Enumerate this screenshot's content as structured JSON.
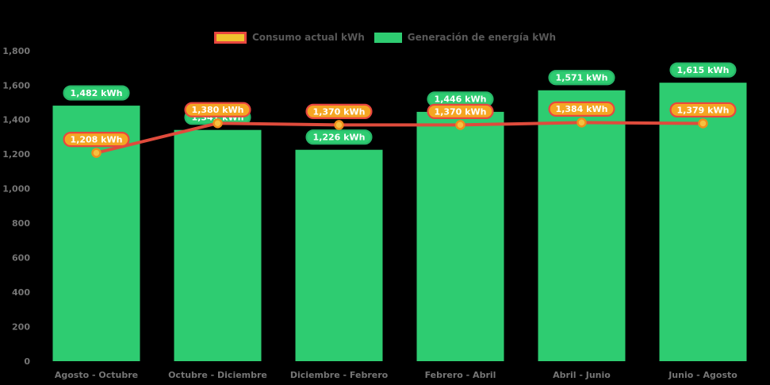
{
  "legend": {
    "consumption_label": "Consumo actual kWh",
    "generation_label": "Generación de energía kWh"
  },
  "colors": {
    "background": "#000000",
    "bar_green": "#2ecc71",
    "green_pill_border": "#27b768",
    "line_red": "#df4b3c",
    "dot_fill": "#f6c13f",
    "dot_stroke": "#ef8e1c",
    "orange_pill_fill": "#f5a623",
    "orange_pill_border": "#e8473f",
    "legend_consumption_fill": "#f0c32e",
    "legend_consumption_border": "#e8473f",
    "axis_text": "#757575",
    "pill_text": "#ffffff",
    "legend_text": "#585858"
  },
  "chart_data": {
    "type": "bar",
    "title": "",
    "xlabel": "",
    "ylabel": "",
    "categories": [
      "Agosto - Octubre",
      "Octubre - Diciembre",
      "Diciembre - Febrero",
      "Febrero - Abril",
      "Abril - Junio",
      "Junio - Agosto"
    ],
    "series": [
      {
        "name": "Generación de energía kWh",
        "type": "bar",
        "values": [
          1482,
          1341,
          1226,
          1446,
          1571,
          1615
        ],
        "labels": [
          "1,482 kWh",
          "1,341 kWh",
          "1,226 kWh",
          "1,446 kWh",
          "1,571 kWh",
          "1,615 kWh"
        ]
      },
      {
        "name": "Consumo actual kWh",
        "type": "line",
        "values": [
          1208,
          1380,
          1370,
          1370,
          1384,
          1379
        ],
        "labels": [
          "1,208 kWh",
          "1,380 kWh",
          "1,370 kWh",
          "1,370 kWh",
          "1,384 kWh",
          "1,379 kWh"
        ]
      }
    ],
    "ylim": [
      0,
      1800
    ],
    "ytick_step": 200,
    "ytick_labels": [
      "0",
      "200",
      "400",
      "600",
      "800",
      "1,000",
      "1,200",
      "1,400",
      "1,600",
      "1,800"
    ],
    "legend_position": "top",
    "grid": false
  }
}
